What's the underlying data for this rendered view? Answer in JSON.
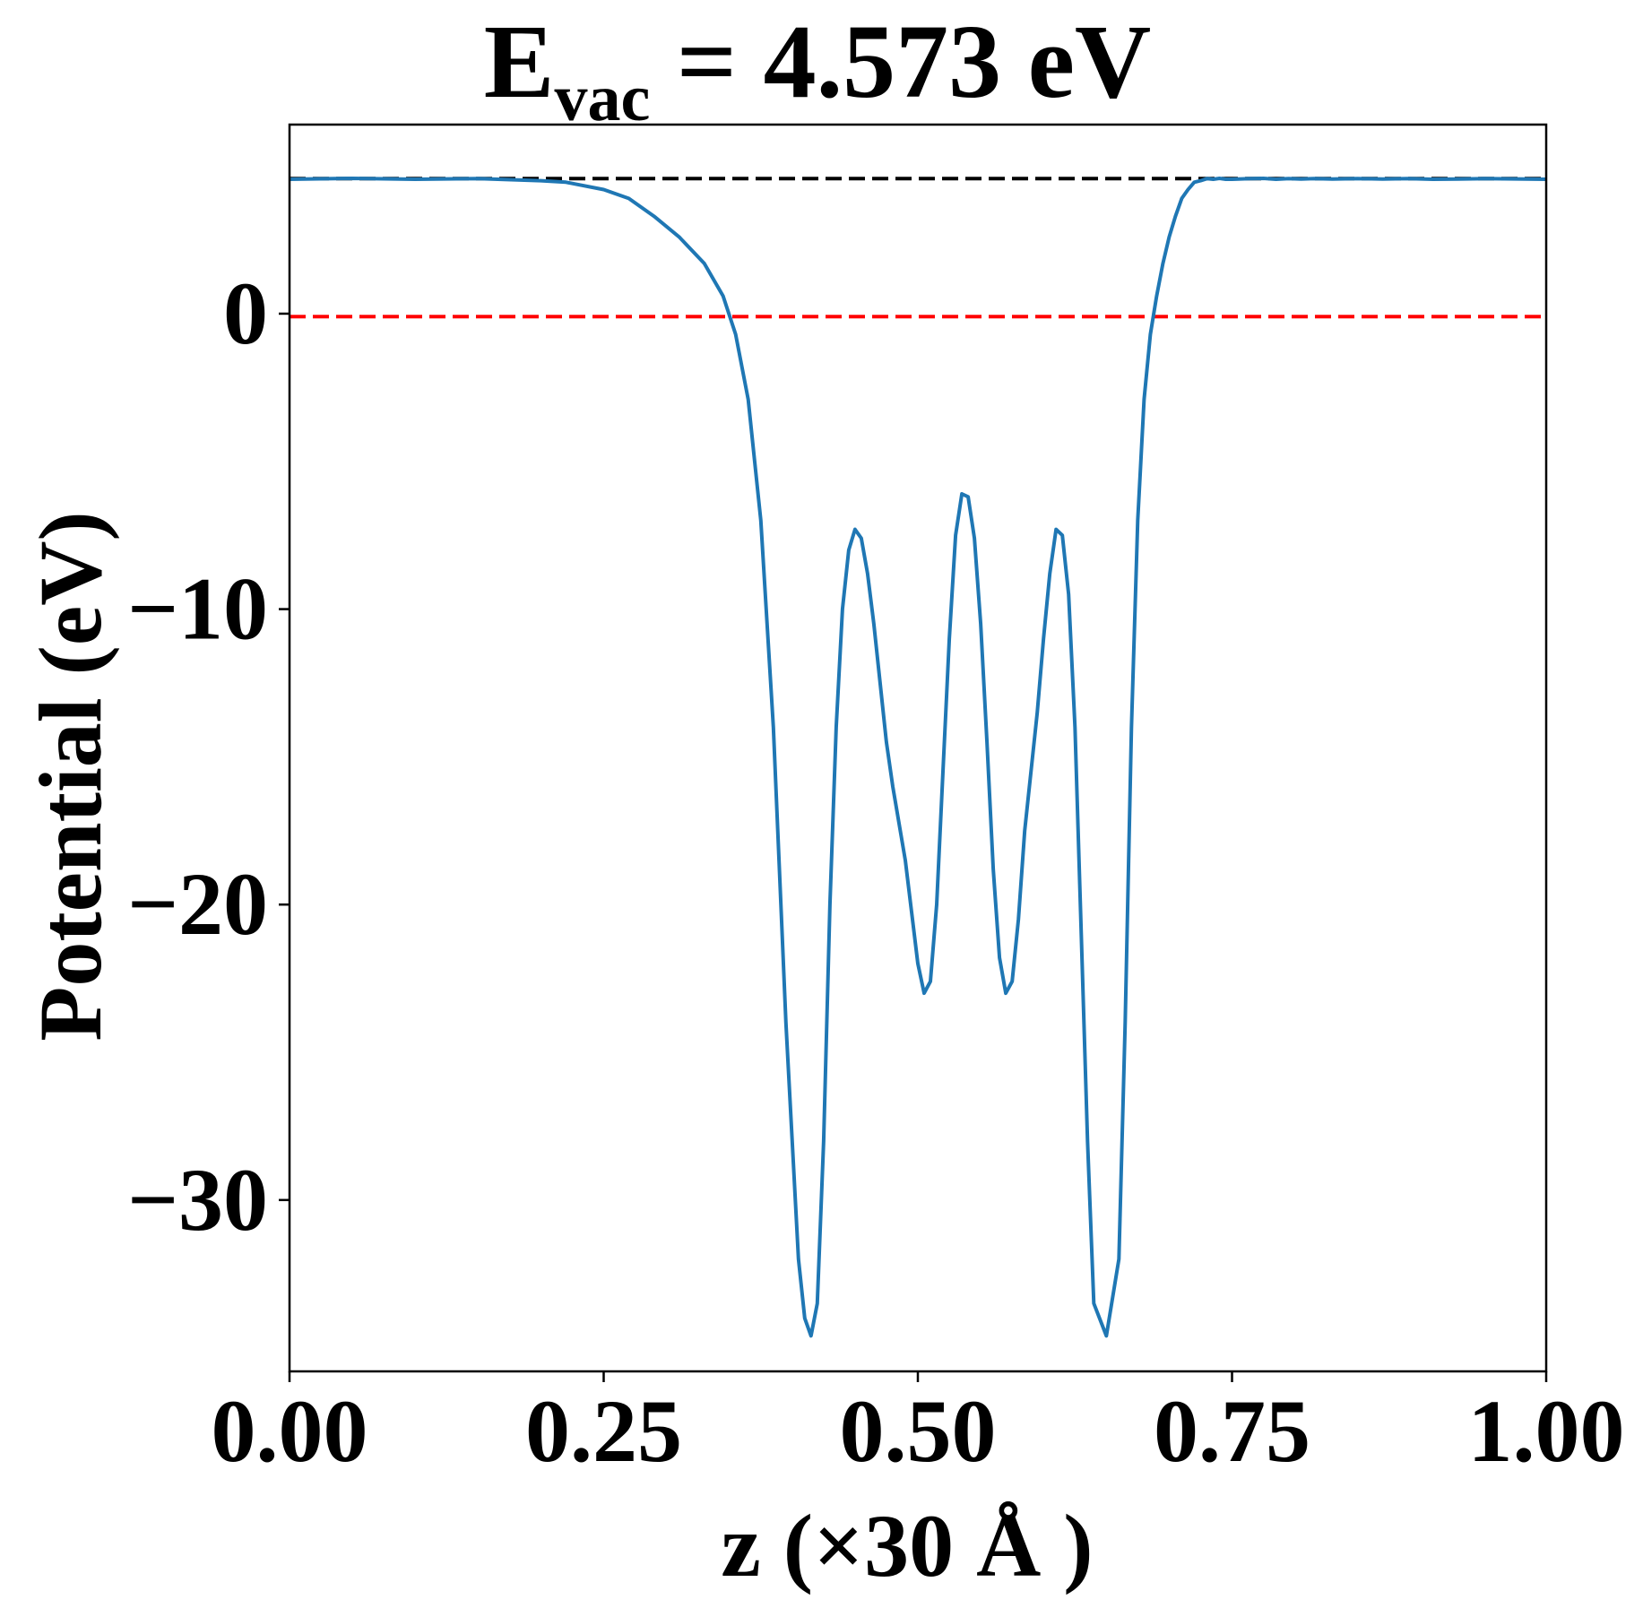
{
  "chart_data": {
    "type": "line",
    "title": {
      "base": "E",
      "subscript": "vac",
      "rest": " = 4.573 eV"
    },
    "xlabel": "z (×30 Å )",
    "ylabel": "Potential (eV)",
    "xlim": [
      0.0,
      1.0
    ],
    "ylim": [
      -35.8,
      6.4
    ],
    "xticks": [
      0.0,
      0.25,
      0.5,
      0.75,
      1.0
    ],
    "xtick_labels": [
      "0.00",
      "0.25",
      "0.50",
      "0.75",
      "1.00"
    ],
    "yticks": [
      0,
      -10,
      -20,
      -30
    ],
    "ytick_labels": [
      "0",
      "−10",
      "−20",
      "−30"
    ],
    "grid": false,
    "reference_lines": [
      {
        "y": 4.573,
        "color": "#000000",
        "style": "dashed"
      },
      {
        "y": -0.1,
        "color": "#ff0000",
        "style": "dashed"
      }
    ],
    "series": [
      {
        "color": "#1f77b4",
        "x": [
          0.0,
          0.05,
          0.1,
          0.15,
          0.2,
          0.22,
          0.25,
          0.27,
          0.29,
          0.31,
          0.33,
          0.345,
          0.355,
          0.365,
          0.375,
          0.385,
          0.395,
          0.405,
          0.41,
          0.415,
          0.42,
          0.425,
          0.43,
          0.435,
          0.44,
          0.445,
          0.45,
          0.455,
          0.46,
          0.465,
          0.47,
          0.475,
          0.48,
          0.49,
          0.5,
          0.505,
          0.51,
          0.515,
          0.52,
          0.525,
          0.53,
          0.535,
          0.54,
          0.545,
          0.55,
          0.555,
          0.56,
          0.565,
          0.57,
          0.575,
          0.58,
          0.585,
          0.59,
          0.595,
          0.6,
          0.605,
          0.61,
          0.615,
          0.62,
          0.625,
          0.63,
          0.635,
          0.64,
          0.65,
          0.66,
          0.665,
          0.67,
          0.675,
          0.68,
          0.685,
          0.69,
          0.695,
          0.7,
          0.705,
          0.71,
          0.715,
          0.72,
          0.725,
          0.73,
          0.735,
          0.74,
          0.745,
          0.75,
          0.755,
          0.765,
          0.775,
          0.785,
          0.795,
          0.805,
          0.815,
          0.83,
          0.85,
          0.87,
          0.89,
          0.91,
          0.93,
          0.95,
          1.0
        ],
        "y": [
          4.55,
          4.58,
          4.55,
          4.57,
          4.5,
          4.45,
          4.2,
          3.9,
          3.3,
          2.6,
          1.7,
          0.6,
          -0.7,
          -2.9,
          -7.0,
          -14.0,
          -24.0,
          -32.0,
          -34.0,
          -34.6,
          -33.5,
          -28.0,
          -20.0,
          -14.0,
          -10.0,
          -8.0,
          -7.3,
          -7.6,
          -8.8,
          -10.5,
          -12.5,
          -14.5,
          -16.0,
          -18.5,
          -22.0,
          -23.0,
          -22.6,
          -20.0,
          -15.5,
          -11.0,
          -7.5,
          -6.1,
          -6.2,
          -7.6,
          -10.5,
          -14.5,
          -18.8,
          -21.8,
          -23.0,
          -22.6,
          -20.5,
          -17.5,
          -15.5,
          -13.5,
          -11.0,
          -8.8,
          -7.3,
          -7.5,
          -9.5,
          -14.0,
          -21.0,
          -28.0,
          -33.5,
          -34.6,
          -32.0,
          -24.0,
          -14.0,
          -7.0,
          -2.9,
          -0.7,
          0.6,
          1.7,
          2.6,
          3.3,
          3.9,
          4.2,
          4.45,
          4.5,
          4.57,
          4.55,
          4.58,
          4.55,
          4.55,
          4.56,
          4.57,
          4.58,
          4.55,
          4.57,
          4.56,
          4.57,
          4.56,
          4.57,
          4.56,
          4.57,
          4.55,
          4.56,
          4.57,
          4.55
        ]
      }
    ]
  }
}
